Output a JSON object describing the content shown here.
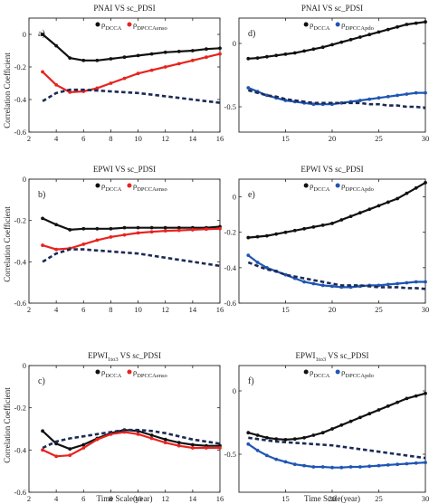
{
  "colors": {
    "dcca": "#111111",
    "dpcca_enso": "#e8231f",
    "dpcca_pdo": "#1f56b3",
    "ref": "#1b2a55"
  },
  "shared_ylabel": "Correlation Coefficient",
  "chart_data": [
    {
      "type": "line",
      "label": "a)",
      "title": "PNAI VS  sc_PDSI",
      "xlim": [
        2,
        16
      ],
      "ylim": [
        -0.6,
        0.1
      ],
      "xticks": [
        "2",
        "4",
        "6",
        "8",
        "10",
        "12",
        "14",
        "16"
      ],
      "yticks": [
        "0",
        "-0.2",
        "-0.4",
        "-0.6"
      ],
      "xlabel": "",
      "legend": {
        "sym1": "ρ",
        "sub1": "DCCA",
        "sym2": "ρ",
        "sub2": "DPCCAenso"
      },
      "series": [
        {
          "role": "dcca",
          "style": "solid",
          "x": [
            3,
            4,
            5,
            6,
            7,
            8,
            9,
            10,
            11,
            12,
            13,
            14,
            15,
            16
          ],
          "y": [
            0.0,
            -0.07,
            -0.145,
            -0.16,
            -0.16,
            -0.15,
            -0.14,
            -0.13,
            -0.12,
            -0.11,
            -0.105,
            -0.1,
            -0.09,
            -0.085
          ]
        },
        {
          "role": "dpcca",
          "style": "solid",
          "x": [
            3,
            4,
            5,
            6,
            7,
            8,
            9,
            10,
            11,
            12,
            13,
            14,
            15,
            16
          ],
          "y": [
            -0.23,
            -0.31,
            -0.355,
            -0.35,
            -0.33,
            -0.3,
            -0.27,
            -0.24,
            -0.22,
            -0.2,
            -0.18,
            -0.16,
            -0.14,
            -0.12
          ]
        },
        {
          "role": "ref",
          "style": "dashed",
          "x": [
            3,
            4,
            5,
            6,
            7,
            8,
            9,
            10,
            11,
            12,
            13,
            14,
            15,
            16
          ],
          "y": [
            -0.41,
            -0.36,
            -0.34,
            -0.34,
            -0.345,
            -0.35,
            -0.355,
            -0.36,
            -0.37,
            -0.38,
            -0.39,
            -0.4,
            -0.41,
            -0.42
          ]
        }
      ]
    },
    {
      "type": "line",
      "label": "d)",
      "title": "PNAI VS  sc_PDSI",
      "xlim": [
        10,
        30
      ],
      "ylim": [
        -0.7,
        0.2
      ],
      "xticks": [
        "15",
        "20",
        "25",
        "30"
      ],
      "yticks": [
        "0",
        "-0.5"
      ],
      "xlabel": "",
      "legend": {
        "sym1": "ρ",
        "sub1": "DCCA",
        "sym2": "ρ",
        "sub2": "DPCCApdo"
      },
      "series": [
        {
          "role": "dcca",
          "style": "solid",
          "x": [
            11,
            12,
            13,
            14,
            15,
            16,
            17,
            18,
            19,
            20,
            21,
            22,
            23,
            24,
            25,
            26,
            27,
            28,
            29,
            30
          ],
          "y": [
            -0.12,
            -0.115,
            -0.105,
            -0.095,
            -0.085,
            -0.075,
            -0.06,
            -0.045,
            -0.03,
            -0.01,
            0.01,
            0.03,
            0.05,
            0.07,
            0.09,
            0.11,
            0.13,
            0.15,
            0.16,
            0.17
          ]
        },
        {
          "role": "dpcca",
          "style": "solid",
          "x": [
            11,
            12,
            13,
            14,
            15,
            16,
            17,
            18,
            19,
            20,
            21,
            22,
            23,
            24,
            25,
            26,
            27,
            28,
            29,
            30
          ],
          "y": [
            -0.35,
            -0.38,
            -0.41,
            -0.43,
            -0.45,
            -0.46,
            -0.47,
            -0.48,
            -0.48,
            -0.48,
            -0.47,
            -0.46,
            -0.45,
            -0.44,
            -0.43,
            -0.42,
            -0.41,
            -0.4,
            -0.39,
            -0.39
          ]
        },
        {
          "role": "ref",
          "style": "dashed",
          "x": [
            11,
            12,
            13,
            14,
            15,
            16,
            17,
            18,
            19,
            20,
            21,
            22,
            23,
            24,
            25,
            26,
            27,
            28,
            29,
            30
          ],
          "y": [
            -0.37,
            -0.39,
            -0.41,
            -0.42,
            -0.44,
            -0.45,
            -0.46,
            -0.47,
            -0.47,
            -0.47,
            -0.47,
            -0.47,
            -0.47,
            -0.48,
            -0.48,
            -0.49,
            -0.49,
            -0.5,
            -0.5,
            -0.51
          ]
        }
      ]
    },
    {
      "type": "line",
      "label": "b)",
      "title": "EPWI VS  sc_PDSI",
      "xlim": [
        2,
        16
      ],
      "ylim": [
        -0.6,
        0.0
      ],
      "xticks": [
        "2",
        "4",
        "6",
        "8",
        "10",
        "12",
        "14",
        "16"
      ],
      "yticks": [
        "0",
        "-0.2",
        "-0.4",
        "-0.6"
      ],
      "xlabel": "",
      "legend": {
        "sym1": "ρ",
        "sub1": "DCCA",
        "sym2": "ρ",
        "sub2": "DPCCAenso"
      },
      "series": [
        {
          "role": "dcca",
          "style": "solid",
          "x": [
            3,
            4,
            5,
            6,
            7,
            8,
            9,
            10,
            11,
            12,
            13,
            14,
            15,
            16
          ],
          "y": [
            -0.19,
            -0.22,
            -0.245,
            -0.24,
            -0.24,
            -0.24,
            -0.235,
            -0.235,
            -0.235,
            -0.235,
            -0.235,
            -0.235,
            -0.235,
            -0.23
          ]
        },
        {
          "role": "dpcca",
          "style": "solid",
          "x": [
            3,
            4,
            5,
            6,
            7,
            8,
            9,
            10,
            11,
            12,
            13,
            14,
            15,
            16
          ],
          "y": [
            -0.32,
            -0.34,
            -0.335,
            -0.315,
            -0.295,
            -0.28,
            -0.27,
            -0.26,
            -0.255,
            -0.25,
            -0.248,
            -0.245,
            -0.242,
            -0.24
          ]
        },
        {
          "role": "ref",
          "style": "dashed",
          "x": [
            3,
            4,
            5,
            6,
            7,
            8,
            9,
            10,
            11,
            12,
            13,
            14,
            15,
            16
          ],
          "y": [
            -0.4,
            -0.36,
            -0.34,
            -0.34,
            -0.345,
            -0.35,
            -0.355,
            -0.36,
            -0.37,
            -0.38,
            -0.39,
            -0.4,
            -0.41,
            -0.42
          ]
        }
      ]
    },
    {
      "type": "line",
      "label": "e)",
      "title": "EPWI VS  sc_PDSI",
      "xlim": [
        10,
        30
      ],
      "ylim": [
        -0.6,
        0.1
      ],
      "xticks": [
        "15",
        "20",
        "25",
        "30"
      ],
      "yticks": [
        "0",
        "-0.2",
        "-0.4",
        "-0.6"
      ],
      "xlabel": "",
      "legend": {
        "sym1": "ρ",
        "sub1": "DCCA",
        "sym2": "ρ",
        "sub2": "DPCCApdo"
      },
      "series": [
        {
          "role": "dcca",
          "style": "solid",
          "x": [
            11,
            12,
            13,
            14,
            15,
            16,
            17,
            18,
            19,
            20,
            21,
            22,
            23,
            24,
            25,
            26,
            27,
            28,
            29,
            30
          ],
          "y": [
            -0.23,
            -0.225,
            -0.22,
            -0.21,
            -0.2,
            -0.19,
            -0.18,
            -0.17,
            -0.16,
            -0.15,
            -0.13,
            -0.11,
            -0.09,
            -0.07,
            -0.05,
            -0.03,
            -0.01,
            0.02,
            0.05,
            0.08
          ]
        },
        {
          "role": "dpcca",
          "style": "solid",
          "x": [
            11,
            12,
            13,
            14,
            15,
            16,
            17,
            18,
            19,
            20,
            21,
            22,
            23,
            24,
            25,
            26,
            27,
            28,
            29,
            30
          ],
          "y": [
            -0.33,
            -0.37,
            -0.4,
            -0.42,
            -0.44,
            -0.46,
            -0.48,
            -0.49,
            -0.5,
            -0.505,
            -0.51,
            -0.51,
            -0.505,
            -0.5,
            -0.5,
            -0.495,
            -0.49,
            -0.485,
            -0.48,
            -0.48
          ]
        },
        {
          "role": "ref",
          "style": "dashed",
          "x": [
            11,
            12,
            13,
            14,
            15,
            16,
            17,
            18,
            19,
            20,
            21,
            22,
            23,
            24,
            25,
            26,
            27,
            28,
            29,
            30
          ],
          "y": [
            -0.37,
            -0.39,
            -0.41,
            -0.42,
            -0.44,
            -0.45,
            -0.46,
            -0.47,
            -0.48,
            -0.49,
            -0.5,
            -0.5,
            -0.5,
            -0.505,
            -0.51,
            -0.51,
            -0.51,
            -0.515,
            -0.515,
            -0.52
          ]
        }
      ]
    },
    {
      "type": "line",
      "label": "c)",
      "title": "EPWI",
      "title_sub": "1to3",
      "title_tail": " VS  sc_PDSI",
      "xlim": [
        2,
        16
      ],
      "ylim": [
        -0.6,
        0.0
      ],
      "xticks": [
        "2",
        "4",
        "6",
        "8",
        "10",
        "12",
        "14",
        "16"
      ],
      "yticks": [
        "0",
        "-0.2",
        "-0.4",
        "-0.6"
      ],
      "xlabel": "Time Scale(year)",
      "legend": {
        "sym1": "ρ",
        "sub1": "DCCA",
        "sym2": "ρ",
        "sub2": "DPCCAenso"
      },
      "series": [
        {
          "role": "dcca",
          "style": "solid",
          "x": [
            3,
            4,
            5,
            6,
            7,
            8,
            9,
            10,
            11,
            12,
            13,
            14,
            15,
            16
          ],
          "y": [
            -0.31,
            -0.37,
            -0.395,
            -0.375,
            -0.345,
            -0.32,
            -0.305,
            -0.31,
            -0.33,
            -0.35,
            -0.365,
            -0.375,
            -0.38,
            -0.38
          ]
        },
        {
          "role": "dpcca",
          "style": "solid",
          "x": [
            3,
            4,
            5,
            6,
            7,
            8,
            9,
            10,
            11,
            12,
            13,
            14,
            15,
            16
          ],
          "y": [
            -0.4,
            -0.43,
            -0.425,
            -0.39,
            -0.35,
            -0.325,
            -0.315,
            -0.325,
            -0.345,
            -0.365,
            -0.38,
            -0.39,
            -0.39,
            -0.39
          ]
        },
        {
          "role": "ref",
          "style": "dashed",
          "x": [
            3,
            4,
            5,
            6,
            7,
            8,
            9,
            10,
            11,
            12,
            13,
            14,
            15,
            16
          ],
          "y": [
            -0.39,
            -0.36,
            -0.345,
            -0.335,
            -0.325,
            -0.315,
            -0.305,
            -0.305,
            -0.31,
            -0.32,
            -0.335,
            -0.35,
            -0.36,
            -0.37
          ]
        }
      ]
    },
    {
      "type": "line",
      "label": "f)",
      "title": "EPWI",
      "title_sub": "1to3",
      "title_tail": " VS  sc_PDSI",
      "xlim": [
        10,
        30
      ],
      "ylim": [
        -0.8,
        0.2
      ],
      "xticks": [
        "15",
        "20",
        "25",
        "30"
      ],
      "yticks": [
        "0",
        "-0.5"
      ],
      "xlabel": "Time Scale(year)",
      "legend": {
        "sym1": "ρ",
        "sub1": "DCCA",
        "sym2": "ρ",
        "sub2": "DPCCApdo"
      },
      "series": [
        {
          "role": "dcca",
          "style": "solid",
          "x": [
            11,
            12,
            13,
            14,
            15,
            16,
            17,
            18,
            19,
            20,
            21,
            22,
            23,
            24,
            25,
            26,
            27,
            28,
            29,
            30
          ],
          "y": [
            -0.33,
            -0.35,
            -0.37,
            -0.38,
            -0.385,
            -0.38,
            -0.37,
            -0.35,
            -0.33,
            -0.3,
            -0.27,
            -0.24,
            -0.21,
            -0.18,
            -0.15,
            -0.12,
            -0.09,
            -0.06,
            -0.04,
            -0.02
          ]
        },
        {
          "role": "dpcca",
          "style": "solid",
          "x": [
            11,
            12,
            13,
            14,
            15,
            16,
            17,
            18,
            19,
            20,
            21,
            22,
            23,
            24,
            25,
            26,
            27,
            28,
            29,
            30
          ],
          "y": [
            -0.42,
            -0.47,
            -0.51,
            -0.54,
            -0.56,
            -0.58,
            -0.59,
            -0.6,
            -0.6,
            -0.605,
            -0.605,
            -0.6,
            -0.6,
            -0.595,
            -0.59,
            -0.585,
            -0.58,
            -0.575,
            -0.57,
            -0.565
          ]
        },
        {
          "role": "ref",
          "style": "dashed",
          "x": [
            11,
            12,
            13,
            14,
            15,
            16,
            17,
            18,
            19,
            20,
            21,
            22,
            23,
            24,
            25,
            26,
            27,
            28,
            29,
            30
          ],
          "y": [
            -0.37,
            -0.38,
            -0.39,
            -0.4,
            -0.405,
            -0.41,
            -0.415,
            -0.42,
            -0.425,
            -0.43,
            -0.44,
            -0.45,
            -0.46,
            -0.47,
            -0.48,
            -0.49,
            -0.5,
            -0.51,
            -0.52,
            -0.53
          ]
        }
      ]
    }
  ]
}
